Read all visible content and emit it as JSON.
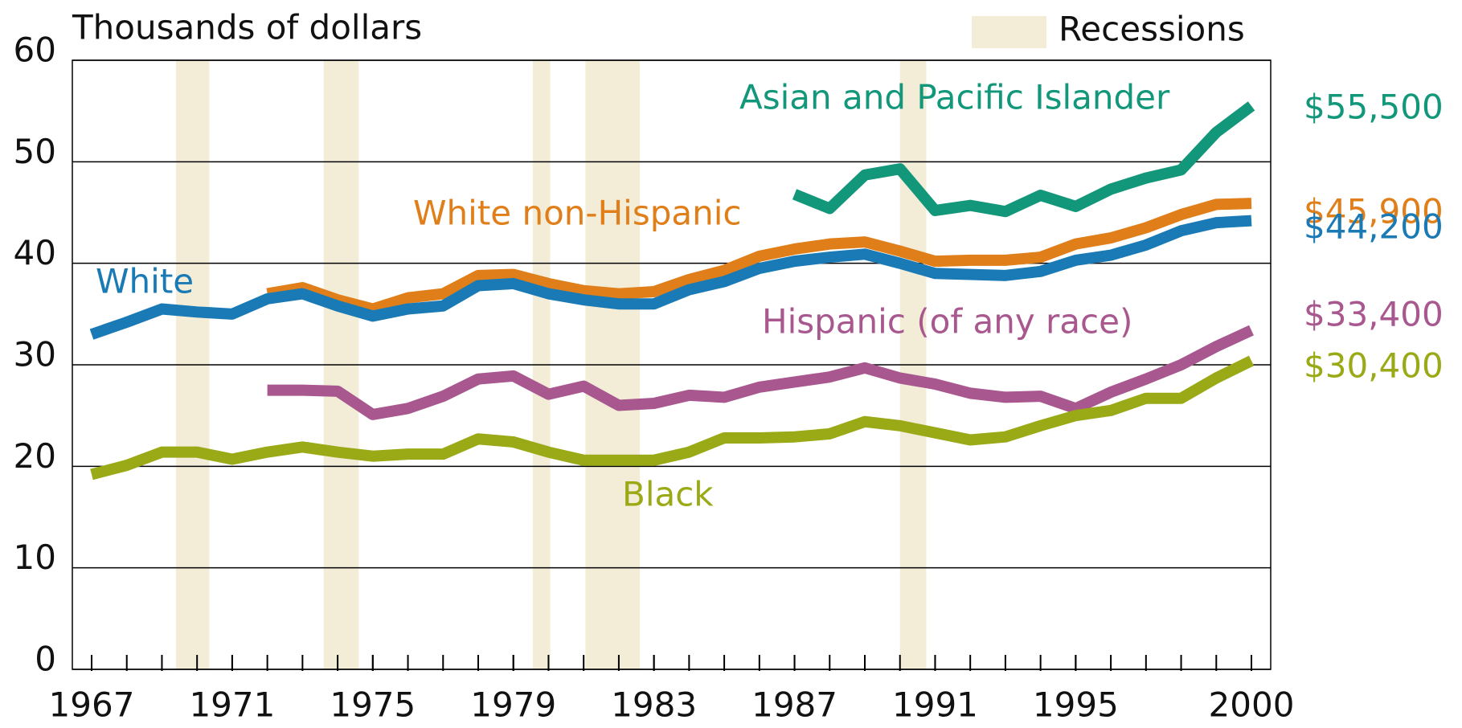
{
  "chart_data": {
    "type": "line",
    "title": "Thousands of dollars",
    "legend_label": "Recessions",
    "recession_color": "#f3edd8",
    "recessions": [
      [
        1969.4,
        1970.35
      ],
      [
        1973.6,
        1974.6
      ],
      [
        1979.55,
        1980.05
      ],
      [
        1981.05,
        1982.6
      ],
      [
        1990.0,
        1990.75
      ]
    ],
    "x": [
      1967,
      1968,
      1969,
      1970,
      1971,
      1972,
      1973,
      1974,
      1975,
      1976,
      1977,
      1978,
      1979,
      1980,
      1981,
      1982,
      1983,
      1984,
      1985,
      1986,
      1987,
      1988,
      1989,
      1990,
      1991,
      1992,
      1993,
      1994,
      1995,
      1996,
      1997,
      1998,
      1999,
      2000
    ],
    "xlim": [
      1967,
      2000
    ],
    "xticks": [
      1967,
      1971,
      1975,
      1979,
      1983,
      1987,
      1991,
      1995,
      2000
    ],
    "ylim": [
      0,
      60
    ],
    "yticks": [
      0,
      10,
      20,
      30,
      40,
      50,
      60
    ],
    "grid": true,
    "series": [
      {
        "name": "Asian and Pacific Islander",
        "color": "#12977a",
        "end_label": "$55,500",
        "values": [
          null,
          null,
          null,
          null,
          null,
          null,
          null,
          null,
          null,
          null,
          null,
          null,
          null,
          null,
          null,
          null,
          null,
          null,
          null,
          null,
          46.8,
          45.4,
          48.7,
          49.3,
          45.2,
          45.7,
          45.1,
          46.7,
          45.6,
          47.3,
          48.4,
          49.2,
          52.9,
          55.5
        ]
      },
      {
        "name": "White non-Hispanic",
        "color": "#e07f1a",
        "end_label": "$45,900",
        "values": [
          null,
          null,
          null,
          null,
          null,
          37.0,
          37.6,
          36.4,
          35.5,
          36.6,
          37.0,
          38.8,
          38.9,
          38.0,
          37.3,
          37.0,
          37.2,
          38.4,
          39.3,
          40.7,
          41.4,
          41.9,
          42.1,
          41.2,
          40.2,
          40.3,
          40.3,
          40.6,
          41.9,
          42.5,
          43.5,
          44.8,
          45.8,
          45.9
        ]
      },
      {
        "name": "White",
        "color": "#1a7ab5",
        "end_label": "$44,200",
        "values": [
          33.0,
          34.2,
          35.5,
          35.2,
          35.0,
          36.5,
          37.0,
          35.8,
          34.8,
          35.5,
          35.8,
          37.8,
          38.0,
          37.0,
          36.4,
          36.0,
          36.0,
          37.4,
          38.2,
          39.5,
          40.2,
          40.6,
          40.9,
          40.0,
          39.0,
          38.9,
          38.8,
          39.2,
          40.3,
          40.8,
          41.8,
          43.2,
          44.0,
          44.2
        ]
      },
      {
        "name": "Hispanic (of any race)",
        "color": "#a8578f",
        "end_label": "$33,400",
        "values": [
          null,
          null,
          null,
          null,
          null,
          27.5,
          27.5,
          27.4,
          25.1,
          25.7,
          26.9,
          28.6,
          28.9,
          27.1,
          27.9,
          26.0,
          26.2,
          27.0,
          26.8,
          27.8,
          28.3,
          28.8,
          29.7,
          28.7,
          28.1,
          27.2,
          26.8,
          26.9,
          25.7,
          27.3,
          28.6,
          30.0,
          31.8,
          33.4
        ]
      },
      {
        "name": "Black",
        "color": "#9aaa16",
        "end_label": "$30,400",
        "values": [
          19.2,
          20.1,
          21.4,
          21.4,
          20.7,
          21.4,
          21.9,
          21.4,
          21.0,
          21.2,
          21.2,
          22.7,
          22.4,
          21.4,
          20.6,
          20.6,
          20.6,
          21.4,
          22.8,
          22.8,
          22.9,
          23.2,
          24.4,
          24.0,
          23.3,
          22.6,
          22.9,
          24.0,
          25.0,
          25.5,
          26.7,
          26.7,
          28.7,
          30.4
        ]
      }
    ]
  }
}
